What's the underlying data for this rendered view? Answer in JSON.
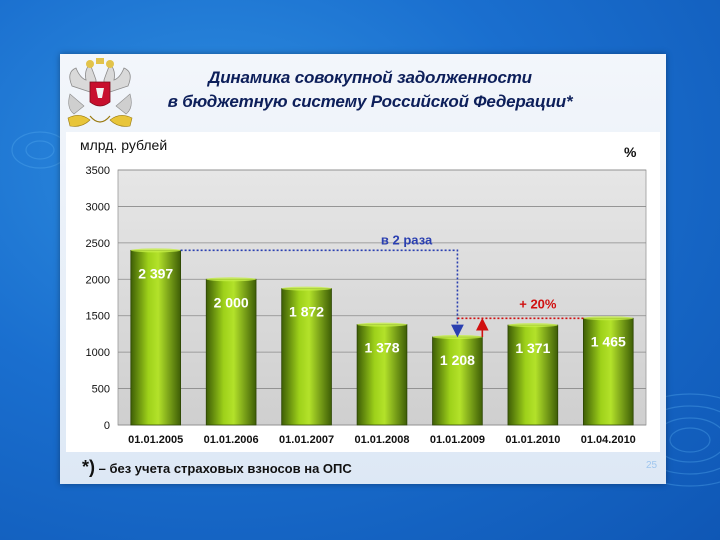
{
  "slide": {
    "title_line1": "Динамика совокупной задолженности",
    "title_line2": "в бюджетную систему Российской Федерации*",
    "footnote_mark": "*)",
    "footnote_text": " – без учета страховых взносов на ОПС",
    "page_number": "25"
  },
  "colors": {
    "background": "#1a6fcf",
    "bar": "#7cb00c",
    "title": "#0d1f5a",
    "annotation_blue": "#2a3fb0",
    "annotation_red": "#d01010"
  },
  "chart_data": {
    "type": "bar",
    "ylabel": "млрд. рублей",
    "unit_right": "%",
    "categories": [
      "01.01.2005",
      "01.01.2006",
      "01.01.2007",
      "01.01.2008",
      "01.01.2009",
      "01.01.2010",
      "01.04.2010"
    ],
    "values": [
      2397,
      2000,
      1872,
      1378,
      1208,
      1371,
      1465
    ],
    "value_labels": [
      "2 397",
      "2 000",
      "1 872",
      "1 378",
      "1 208",
      "1 371",
      "1 465"
    ],
    "ylim": [
      0,
      3500
    ],
    "yticks": [
      "0",
      "500",
      "1000",
      "1500",
      "2000",
      "2500",
      "3000",
      "3500"
    ],
    "grid": true,
    "annotations": [
      {
        "text": "в 2 раза",
        "from_category": "01.01.2005",
        "to_category": "01.01.2009"
      },
      {
        "text": "+ 20%",
        "from_category": "01.01.2009",
        "to_category": "01.04.2010"
      }
    ]
  }
}
